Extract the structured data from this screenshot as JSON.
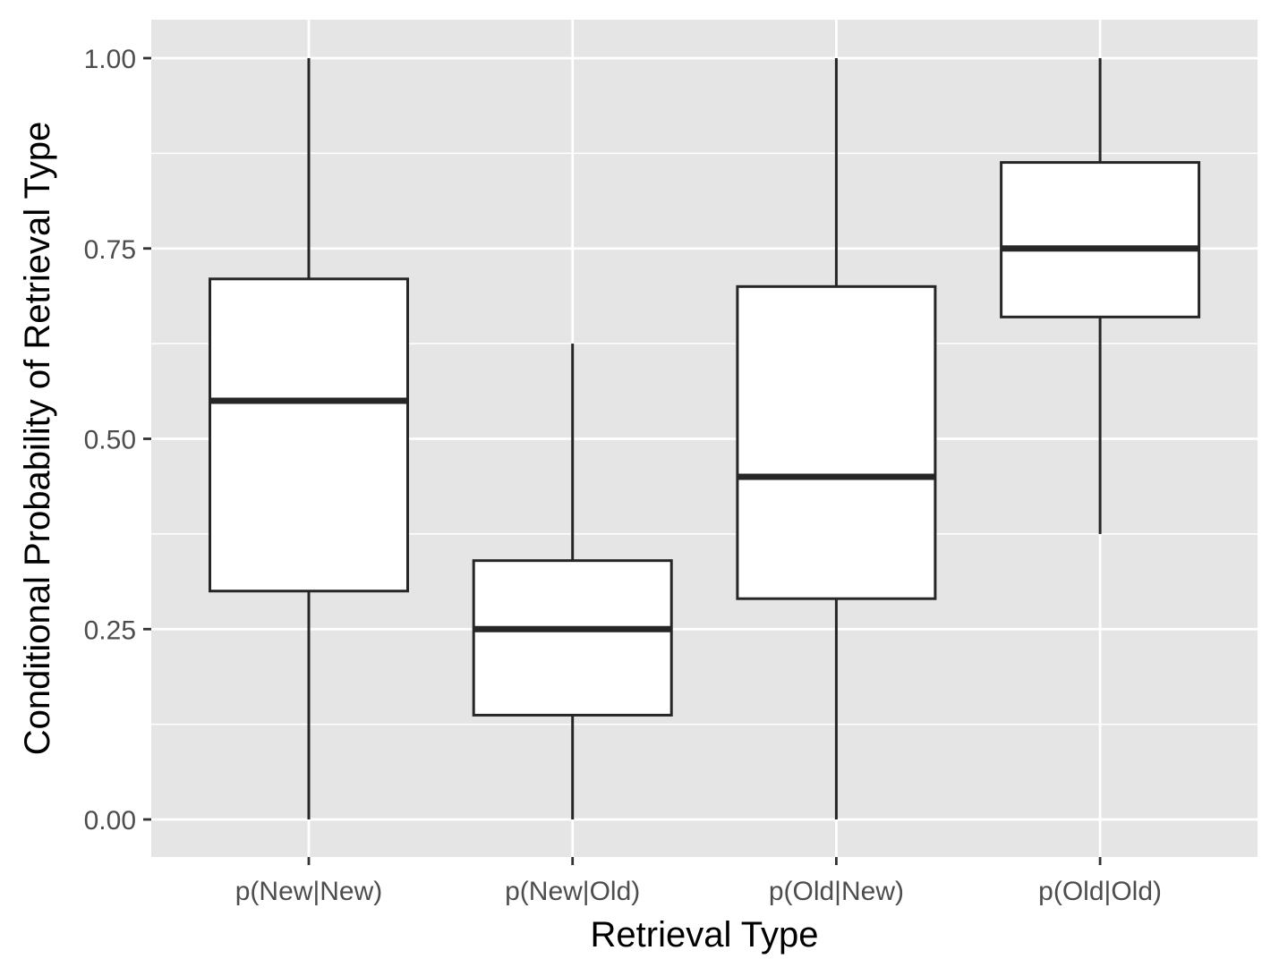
{
  "chart_data": {
    "type": "boxplot",
    "title": "",
    "xlabel": "Retrieval Type",
    "ylabel": "Conditional Probability of Retrieval Type",
    "ylim": [
      -0.1,
      1.05
    ],
    "yticks": [
      0.0,
      0.25,
      0.5,
      0.75,
      1.0
    ],
    "ytick_labels": [
      "0.00",
      "0.25",
      "0.50",
      "0.75",
      "1.00"
    ],
    "categories": [
      "p(New|New)",
      "p(New|Old)",
      "p(Old|New)",
      "p(Old|Old)"
    ],
    "boxes": [
      {
        "category": "p(New|New)",
        "min": 0.0,
        "q1": 0.3,
        "median": 0.55,
        "q3": 0.71,
        "max": 1.0
      },
      {
        "category": "p(New|Old)",
        "min": 0.0,
        "q1": 0.137,
        "median": 0.25,
        "q3": 0.34,
        "max": 0.625
      },
      {
        "category": "p(Old|New)",
        "min": 0.0,
        "q1": 0.29,
        "median": 0.45,
        "q3": 0.7,
        "max": 1.0
      },
      {
        "category": "p(Old|Old)",
        "min": 0.375,
        "q1": 0.66,
        "median": 0.75,
        "q3": 0.863,
        "max": 1.0
      }
    ],
    "grid": true,
    "legend": "none",
    "colors": {
      "panel_background": "#e5e5e5",
      "grid_line": "#ffffff",
      "box_fill": "#ffffff",
      "box_line": "#262626",
      "tick_mark": "#333333",
      "tick_text": "#4d4d4d",
      "title_text": "#000000"
    }
  }
}
